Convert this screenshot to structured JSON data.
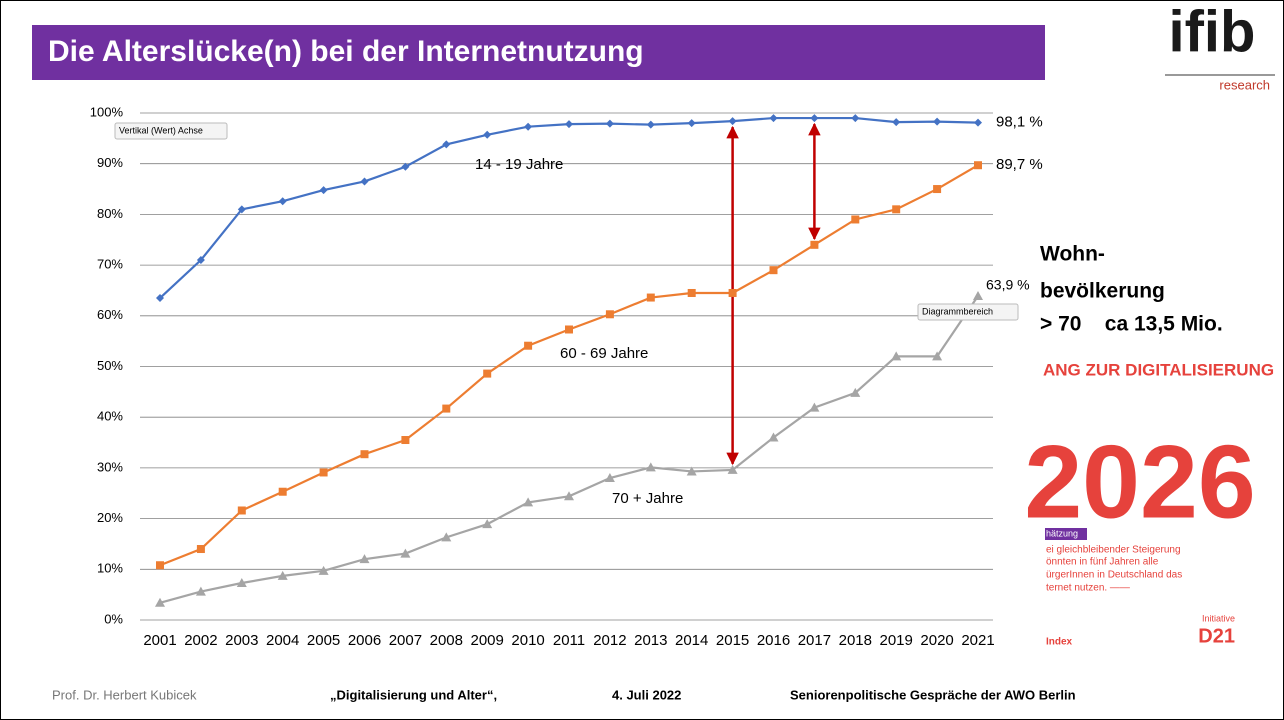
{
  "header": {
    "title": "Die Alterslücke(n) bei der Internetnutzung"
  },
  "logo": {
    "name": "ifib",
    "sub": "research"
  },
  "chart_data": {
    "type": "line",
    "categories": [
      "2001",
      "2002",
      "2003",
      "2004",
      "2005",
      "2006",
      "2007",
      "2008",
      "2009",
      "2010",
      "2011",
      "2012",
      "2013",
      "2014",
      "2015",
      "2016",
      "2017",
      "2018",
      "2019",
      "2020",
      "2021"
    ],
    "series": [
      {
        "name": "14 - 19 Jahre",
        "color": "#4472c4",
        "marker": "diamond",
        "values": [
          63.5,
          71,
          81,
          82.6,
          84.8,
          86.5,
          89.4,
          93.8,
          95.7,
          97.3,
          97.8,
          97.9,
          97.7,
          98.0,
          98.4,
          99.0,
          99.0,
          99.0,
          98.2,
          98.3,
          98.1
        ],
        "value_labels": [
          null,
          null,
          null,
          null,
          null,
          null,
          null,
          null,
          null,
          null,
          null,
          null,
          null,
          null,
          null,
          null,
          null,
          null,
          null,
          null,
          "98,1 %"
        ]
      },
      {
        "name": "60 - 69 Jahre",
        "color": "#ed7d31",
        "marker": "square",
        "values": [
          10.8,
          14,
          21.6,
          25.3,
          29.1,
          32.7,
          35.5,
          41.7,
          48.6,
          54.1,
          57.3,
          60.3,
          63.6,
          64.5,
          64.5,
          69,
          74,
          79,
          81,
          85,
          89.7
        ],
        "value_labels": [
          null,
          null,
          null,
          null,
          null,
          null,
          null,
          null,
          null,
          null,
          null,
          null,
          null,
          null,
          null,
          null,
          null,
          null,
          null,
          null,
          "89,7 %"
        ]
      },
      {
        "name": "70 + Jahre",
        "color": "#a5a5a5",
        "marker": "triangle",
        "values": [
          3.4,
          5.6,
          7.3,
          8.7,
          9.7,
          12,
          13.1,
          16.3,
          18.9,
          23.2,
          24.4,
          28,
          30.1,
          29.3,
          29.6,
          36,
          41.9,
          44.8,
          52,
          52,
          63.9
        ],
        "value_labels": [
          null,
          null,
          null,
          null,
          null,
          null,
          null,
          null,
          null,
          null,
          null,
          null,
          null,
          null,
          null,
          null,
          null,
          null,
          null,
          null,
          "63,9 %"
        ]
      }
    ],
    "ylim": [
      0,
      100
    ],
    "yticks": [
      {
        "value": 0,
        "label": "0%"
      },
      {
        "value": 10,
        "label": "10%"
      },
      {
        "value": 20,
        "label": "20%"
      },
      {
        "value": 30,
        "label": "30%"
      },
      {
        "value": 40,
        "label": "40%"
      },
      {
        "value": 50,
        "label": "50%"
      },
      {
        "value": 60,
        "label": "60%"
      },
      {
        "value": 70,
        "label": "70%"
      },
      {
        "value": 80,
        "label": "80%"
      },
      {
        "value": 90,
        "label": "90%"
      },
      {
        "value": 100,
        "label": "100%"
      }
    ],
    "grid": true,
    "tooltips": [
      "Vertikal (Wert) Achse",
      "Diagrammbereich"
    ]
  },
  "side": {
    "lines": [
      "Wohn-",
      "bevölkerung",
      "> 70    ca 13,5 Mio."
    ]
  },
  "inset": {
    "heading": "ANG ZUR DIGITALISIERUNG",
    "big": "2026",
    "tag": "hätzung",
    "text": [
      "ei gleichbleibender Steigerung",
      "önnten in fünf Jahren alle",
      "ürgerInnen in Deutschland das",
      "ternet nutzen. ——"
    ],
    "index": "Index",
    "initiative": "Initiative",
    "d21": "D21"
  },
  "footer": {
    "author": "Prof. Dr. Herbert Kubicek",
    "talk": "„Digitalisierung und Alter“,",
    "date": "4. Juli 2022",
    "event": "Seniorenpolitische Gespräche der AWO Berlin"
  }
}
